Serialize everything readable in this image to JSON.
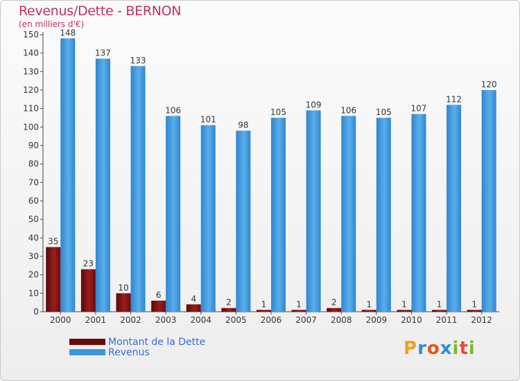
{
  "chart_data": {
    "type": "bar",
    "title": "Revenus/Dette - BERNON",
    "subtitle": "(en milliers d'€)",
    "categories": [
      "2000",
      "2001",
      "2002",
      "2003",
      "2004",
      "2005",
      "2006",
      "2007",
      "2008",
      "2009",
      "2010",
      "2011",
      "2012"
    ],
    "series": [
      {
        "name": "Montant de la Dette",
        "color": "#7a1010",
        "values": [
          35,
          23,
          10,
          6,
          4,
          2,
          1,
          1,
          2,
          1,
          1,
          1,
          1
        ]
      },
      {
        "name": "Revenus",
        "color": "#3d96dd",
        "values": [
          148,
          137,
          133,
          106,
          101,
          98,
          105,
          109,
          106,
          105,
          107,
          112,
          120
        ]
      }
    ],
    "ylim": [
      0,
      150
    ],
    "yticks": [
      0,
      10,
      20,
      30,
      40,
      50,
      60,
      70,
      80,
      90,
      100,
      110,
      120,
      130,
      140,
      150
    ],
    "grid": false,
    "legend_position": "bottom-left"
  },
  "logo": {
    "text": "Proxiti"
  }
}
